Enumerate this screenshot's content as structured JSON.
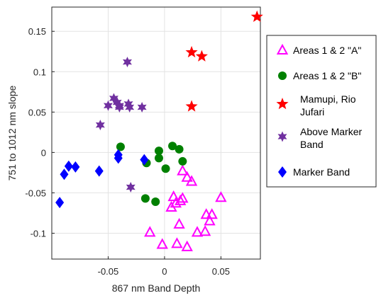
{
  "chart_data": {
    "type": "scatter",
    "title": "",
    "xlabel": "867 nm Band Depth",
    "ylabel": "751 to 1012 nm slope",
    "xlim": [
      -0.1,
      0.085
    ],
    "ylim": [
      -0.132,
      0.18
    ],
    "xticks": [
      -0.05,
      0,
      0.05
    ],
    "xtick_labels": [
      "-0.05",
      "0",
      "0.05"
    ],
    "yticks": [
      -0.1,
      -0.05,
      0,
      0.05,
      0.1,
      0.15
    ],
    "ytick_labels": [
      "-0.1",
      "-0.05",
      "0",
      "0.05",
      "0.1",
      "0.15"
    ],
    "grid": true,
    "legend_position": "right",
    "series": [
      {
        "name": "Areas 1 & 2 \"A\"",
        "marker": "triangle-open",
        "color": "#ff00ff",
        "points": [
          [
            -0.013,
            -0.099
          ],
          [
            -0.002,
            -0.114
          ],
          [
            0.011,
            -0.113
          ],
          [
            0.02,
            -0.117
          ],
          [
            0.006,
            -0.068
          ],
          [
            0.008,
            -0.055
          ],
          [
            0.01,
            -0.063
          ],
          [
            0.014,
            -0.06
          ],
          [
            0.016,
            -0.057
          ],
          [
            0.016,
            -0.023
          ],
          [
            0.02,
            -0.031
          ],
          [
            0.024,
            -0.036
          ],
          [
            0.013,
            -0.089
          ],
          [
            0.029,
            -0.099
          ],
          [
            0.036,
            -0.098
          ],
          [
            0.037,
            -0.077
          ],
          [
            0.042,
            -0.077
          ],
          [
            0.04,
            -0.085
          ],
          [
            0.05,
            -0.056
          ]
        ]
      },
      {
        "name": "Areas 1 & 2 \"B\"",
        "marker": "circle",
        "color": "#008000",
        "points": [
          [
            -0.039,
            0.007
          ],
          [
            -0.016,
            -0.013
          ],
          [
            -0.005,
            0.002
          ],
          [
            -0.005,
            -0.007
          ],
          [
            0.001,
            -0.02
          ],
          [
            0.007,
            0.008
          ],
          [
            0.013,
            0.004
          ],
          [
            0.016,
            -0.011
          ],
          [
            -0.017,
            -0.057
          ],
          [
            -0.008,
            -0.061
          ]
        ]
      },
      {
        "name": "Mamupi, Rio Jufari",
        "marker": "star5",
        "color": "#ff0000",
        "points": [
          [
            0.082,
            0.168
          ],
          [
            0.024,
            0.124
          ],
          [
            0.033,
            0.119
          ],
          [
            0.024,
            0.057
          ]
        ]
      },
      {
        "name": "Above Marker Band",
        "marker": "star6",
        "color": "#7030a0",
        "points": [
          [
            -0.033,
            0.112
          ],
          [
            -0.05,
            0.058
          ],
          [
            -0.045,
            0.067
          ],
          [
            -0.042,
            0.062
          ],
          [
            -0.04,
            0.058
          ],
          [
            -0.04,
            0.056
          ],
          [
            -0.032,
            0.06
          ],
          [
            -0.031,
            0.056
          ],
          [
            -0.02,
            0.056
          ],
          [
            -0.057,
            0.034
          ],
          [
            -0.03,
            -0.043
          ]
        ]
      },
      {
        "name": "Marker Band",
        "marker": "diamond",
        "color": "#0000ff",
        "points": [
          [
            -0.093,
            -0.062
          ],
          [
            -0.089,
            -0.027
          ],
          [
            -0.085,
            -0.017
          ],
          [
            -0.079,
            -0.018
          ],
          [
            -0.058,
            -0.023
          ],
          [
            -0.041,
            -0.003
          ],
          [
            -0.041,
            -0.007
          ],
          [
            -0.018,
            -0.009
          ]
        ]
      }
    ]
  },
  "legend": {
    "items": [
      {
        "line1": "Areas 1 & 2 \"A\"",
        "line2": ""
      },
      {
        "line1": "Areas 1 & 2 \"B\"",
        "line2": ""
      },
      {
        "line1": "Mamupi, Rio",
        "line2": "Jufari"
      },
      {
        "line1": "Above Marker",
        "line2": "Band"
      },
      {
        "line1": "Marker Band",
        "line2": ""
      }
    ]
  }
}
